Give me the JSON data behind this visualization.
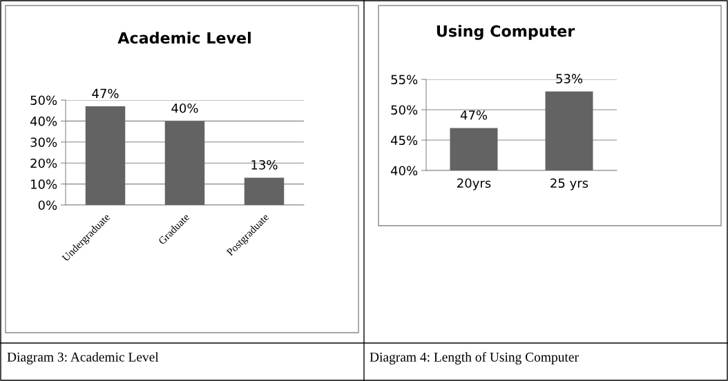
{
  "chart_data": [
    {
      "type": "bar",
      "title": "Academic Level",
      "categories": [
        "Undergraduate",
        "Graduate",
        "Postgraduate"
      ],
      "values": [
        47,
        40,
        13
      ],
      "value_labels": [
        "47%",
        "40%",
        "13%"
      ],
      "color": "#636363",
      "ylim": [
        0,
        50
      ],
      "yticks": [
        {
          "value": 0,
          "label": "0%"
        },
        {
          "value": 10,
          "label": "10%"
        },
        {
          "value": 20,
          "label": "20%"
        },
        {
          "value": 30,
          "label": "30%"
        },
        {
          "value": 40,
          "label": "40%"
        },
        {
          "value": 50,
          "label": "50%"
        }
      ],
      "grid": "y",
      "annotations": [
        "Diagram 3: Academic Level"
      ]
    },
    {
      "type": "bar",
      "title": "Using Computer",
      "categories": [
        "20yrs",
        "25 yrs"
      ],
      "values": [
        47,
        53
      ],
      "value_labels": [
        "47%",
        "53%"
      ],
      "color": "#636363",
      "ylim": [
        40,
        55
      ],
      "yticks": [
        {
          "value": 40,
          "label": "40%"
        },
        {
          "value": 45,
          "label": "45%"
        },
        {
          "value": 50,
          "label": "50%"
        },
        {
          "value": 55,
          "label": "55%"
        }
      ],
      "grid": "y",
      "annotations": [
        "Diagram 4: Length of Using Computer"
      ]
    }
  ]
}
